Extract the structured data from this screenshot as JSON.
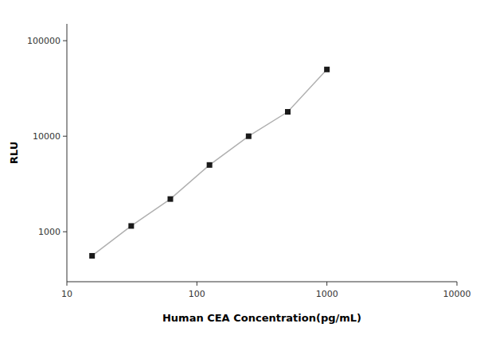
{
  "chart_data": {
    "type": "line",
    "x": [
      15.625,
      31.25,
      62.5,
      125,
      250,
      500,
      1000
    ],
    "values": [
      560,
      1150,
      2200,
      5000,
      10000,
      18000,
      50000
    ],
    "xlabel": "Human CEA Concentration(pg/mL)",
    "ylabel": "RLU",
    "xlim": [
      10,
      10000
    ],
    "ylim": [
      300,
      150000
    ],
    "xticks": [
      10,
      100,
      1000,
      10000
    ],
    "yticks": [
      1000,
      10000,
      100000
    ],
    "log": true,
    "grid": false,
    "color": "#b0b0b0",
    "colors": [
      "#1a1a1a",
      "#1a1a1a",
      "#1a1a1a",
      "#1a1a1a",
      "#1a1a1a",
      "#1a1a1a",
      "#1a1a1a"
    ],
    "marker": "square",
    "line_style": "solid"
  }
}
